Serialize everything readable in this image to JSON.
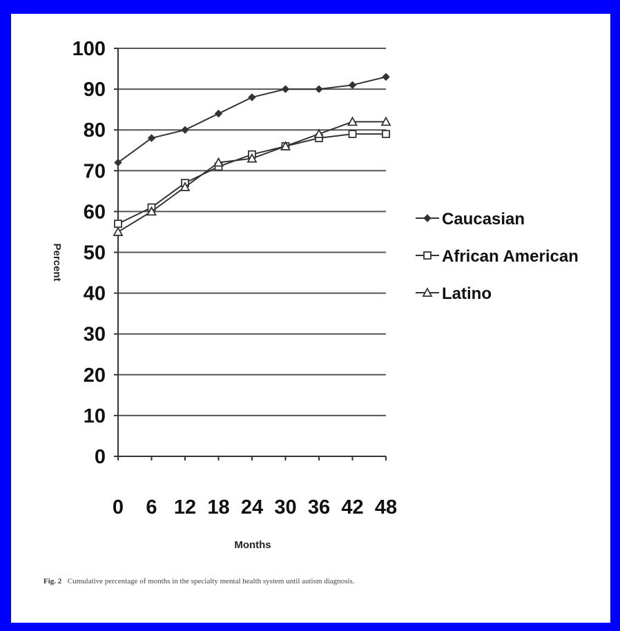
{
  "chart_data": {
    "type": "line",
    "xlabel": "Months",
    "ylabel": "Percent",
    "x": [
      0,
      6,
      12,
      18,
      24,
      30,
      36,
      42,
      48
    ],
    "ylim": [
      0,
      100
    ],
    "yticks": [
      0,
      10,
      20,
      30,
      40,
      50,
      60,
      70,
      80,
      90,
      100
    ],
    "grid": true,
    "legend_position": "right",
    "series": [
      {
        "name": "Caucasian",
        "marker": "diamond",
        "values": [
          72,
          78,
          80,
          84,
          88,
          90,
          90,
          91,
          93
        ]
      },
      {
        "name": "African American",
        "marker": "square",
        "values": [
          57,
          61,
          67,
          71,
          74,
          76,
          78,
          79,
          79
        ]
      },
      {
        "name": "Latino",
        "marker": "triangle",
        "values": [
          55,
          60,
          66,
          72,
          73,
          76,
          79,
          82,
          82
        ]
      }
    ]
  },
  "caption": {
    "label": "Fig. 2",
    "text": "Cumulative percentage of months in the specialty mental health system until autism diagnosis."
  },
  "colors": {
    "border": "#0000ff",
    "line": "#333333",
    "grid": "#555555"
  }
}
